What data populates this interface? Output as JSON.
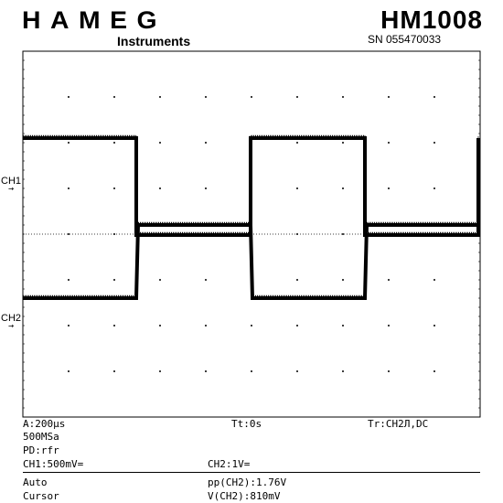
{
  "header": {
    "brand": "HAMEG",
    "brand_sub": "Instruments",
    "model": "HM1008",
    "serial": "SN  055470033"
  },
  "channels": {
    "ch1_label": "CH1",
    "ch2_label": "CH2"
  },
  "status": {
    "timebase": "A:200µs",
    "trigger_time": "Tt:0s",
    "trigger_source": "Tr:CH2Л,DC",
    "sample_rate": "500MSa",
    "mode": "PD:rfr",
    "ch1_scale": "CH1:500mV=",
    "ch2_scale": "CH2:1V=",
    "auto": "Auto",
    "cursor": "Cursor",
    "pp_reading": "pp(CH2):1.76V",
    "v_reading": "V(CH2):810mV"
  },
  "chart_data": {
    "type": "line",
    "title": "",
    "xlabel": "",
    "ylabel": "",
    "grid": true,
    "xlim": [
      0,
      10
    ],
    "ylim": [
      -4,
      4
    ],
    "series": [
      {
        "name": "CH1",
        "x": [
          0,
          2.48,
          2.48,
          4.98,
          4.98,
          7.48,
          7.48,
          9.96,
          9.96
        ],
        "y": [
          2.1,
          2.1,
          -0.02,
          -0.02,
          2.1,
          2.1,
          -0.02,
          -0.02,
          2.1
        ]
      },
      {
        "name": "CH2",
        "x": [
          0,
          2.48,
          2.52,
          4.98,
          5.02,
          7.48,
          7.52,
          9.96,
          10
        ],
        "y": [
          -1.4,
          -1.4,
          0.2,
          0.2,
          -1.4,
          -1.4,
          0.2,
          0.2,
          0.2
        ]
      }
    ]
  }
}
